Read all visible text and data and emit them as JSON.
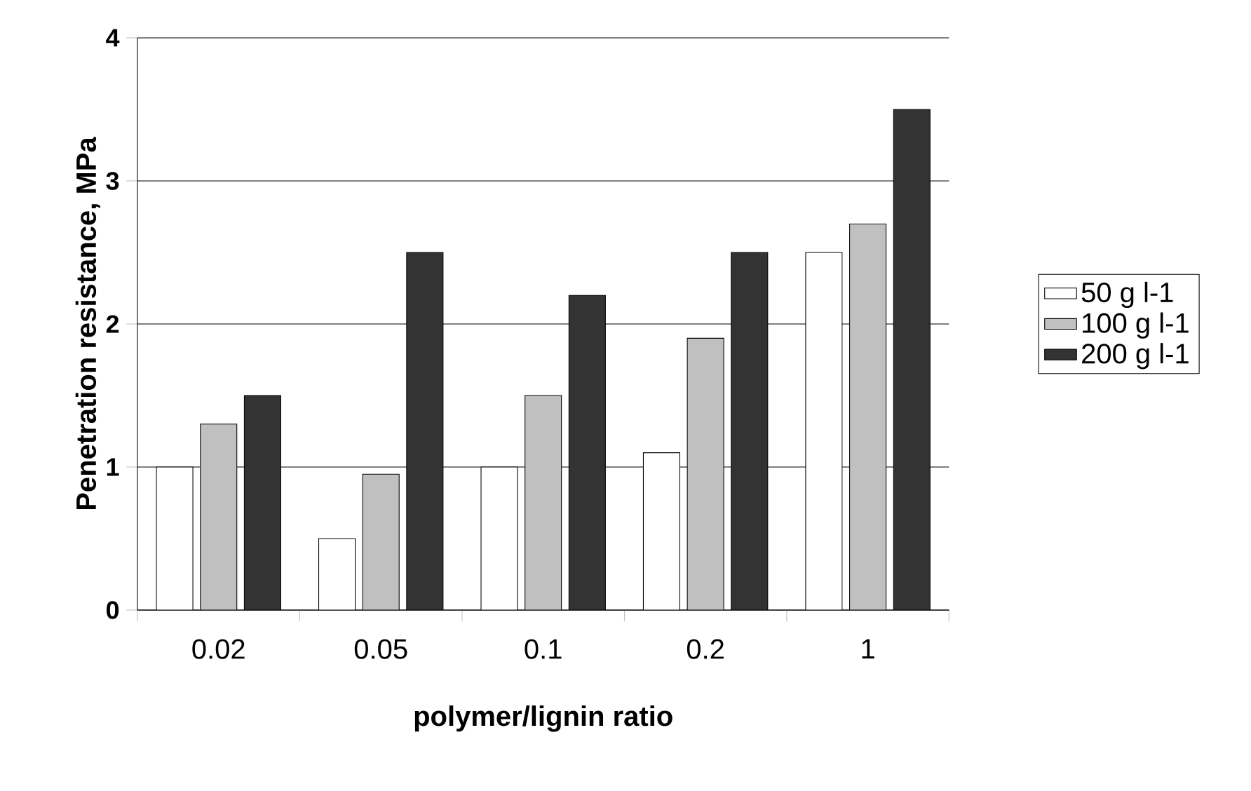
{
  "chart_data": {
    "type": "bar",
    "xlabel": "polymer/lignin ratio",
    "ylabel": "Penetration resistance, MPa",
    "categories": [
      "0.02",
      "0.05",
      "0.1",
      "0.2",
      "1"
    ],
    "series": [
      {
        "name": "50 g l-1",
        "color": "#ffffff",
        "values": [
          1.0,
          0.5,
          1.0,
          1.1,
          2.5
        ]
      },
      {
        "name": "100 g l-1",
        "color": "#c0c0c0",
        "values": [
          1.3,
          0.95,
          1.5,
          1.9,
          2.7
        ]
      },
      {
        "name": "200 g l-1",
        "color": "#333333",
        "values": [
          1.5,
          2.5,
          2.2,
          2.5,
          3.5
        ]
      }
    ],
    "ylim": [
      0,
      4
    ],
    "yticks": [
      0,
      1,
      2,
      3,
      4
    ],
    "grid": "y",
    "legend": "right"
  }
}
